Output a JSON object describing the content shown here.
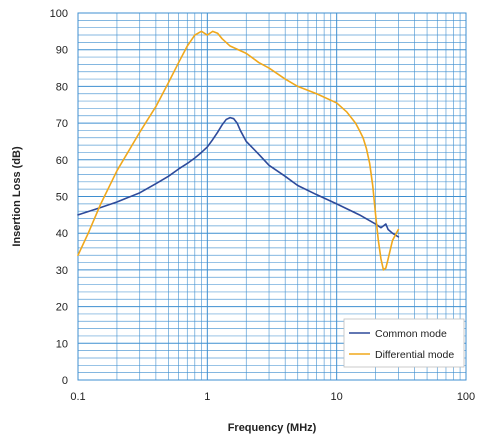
{
  "chart_data": {
    "type": "line",
    "xlabel": "Frequency (MHz)",
    "ylabel": "Insertion Loss (dB)",
    "xscale": "log",
    "xlim": [
      0.1,
      100
    ],
    "ylim": [
      0,
      100
    ],
    "x_ticks": [
      "0.1",
      "1",
      "10",
      "100"
    ],
    "y_ticks": [
      "0",
      "10",
      "20",
      "30",
      "40",
      "50",
      "60",
      "70",
      "80",
      "90",
      "100"
    ],
    "grid": true,
    "legend_position": "bottom-right",
    "series": [
      {
        "name": "Common mode",
        "color": "#2e4a9a",
        "x": [
          0.1,
          0.15,
          0.2,
          0.3,
          0.4,
          0.5,
          0.6,
          0.7,
          0.8,
          0.9,
          1.0,
          1.1,
          1.2,
          1.3,
          1.4,
          1.5,
          1.6,
          1.7,
          1.8,
          2.0,
          2.5,
          3.0,
          4.0,
          5.0,
          7.0,
          10,
          15,
          20,
          22,
          23,
          24,
          25,
          27,
          30
        ],
        "y": [
          45,
          47,
          48.5,
          51,
          53.5,
          55.5,
          57.5,
          59,
          60.5,
          62,
          63.5,
          65.5,
          67.5,
          69.5,
          71,
          71.5,
          71.2,
          70,
          68,
          65,
          61.5,
          58.5,
          55.5,
          53,
          50.5,
          48,
          45,
          42.5,
          41.5,
          42,
          42.5,
          41,
          40,
          39
        ]
      },
      {
        "name": "Differential mode",
        "color": "#f0a81c",
        "x": [
          0.1,
          0.12,
          0.15,
          0.2,
          0.3,
          0.4,
          0.5,
          0.6,
          0.7,
          0.8,
          0.9,
          1.0,
          1.1,
          1.2,
          1.3,
          1.5,
          2.0,
          2.5,
          3.0,
          4.0,
          5.0,
          7.0,
          10,
          12,
          14,
          15,
          16,
          17,
          18,
          19,
          20,
          21,
          22,
          23,
          24,
          25,
          27,
          30
        ],
        "y": [
          34,
          40,
          48,
          57,
          67.5,
          74.5,
          81,
          86.5,
          91,
          94,
          95,
          94,
          95,
          94.5,
          93,
          91,
          89,
          86.5,
          85,
          82,
          80,
          78,
          75.5,
          73,
          70,
          68,
          66,
          63,
          59,
          53,
          45,
          38,
          33,
          30,
          30.5,
          33,
          38,
          41
        ]
      }
    ]
  }
}
